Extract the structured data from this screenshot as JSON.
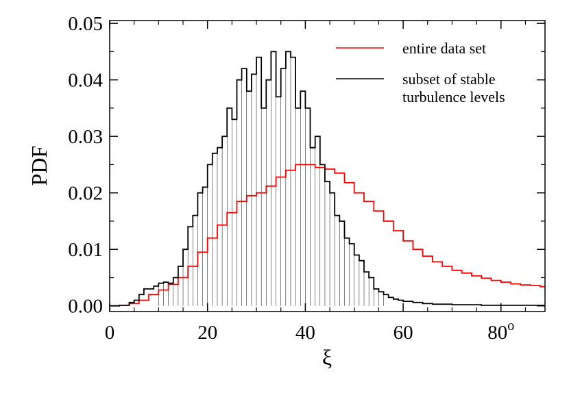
{
  "chart_data": {
    "type": "line",
    "xlabel": "ξ",
    "ylabel": "PDF",
    "xlim": [
      0,
      89
    ],
    "ylim": [
      -0.001,
      0.0505
    ],
    "xticks": [
      {
        "value": 0,
        "label": "0"
      },
      {
        "value": 20,
        "label": "20"
      },
      {
        "value": 40,
        "label": "40"
      },
      {
        "value": 60,
        "label": "60"
      },
      {
        "value": 80,
        "label": "80",
        "superscript": "o"
      }
    ],
    "yticks": [
      {
        "value": 0.0,
        "label": "0.00"
      },
      {
        "value": 0.01,
        "label": "0.01"
      },
      {
        "value": 0.02,
        "label": "0.02"
      },
      {
        "value": 0.03,
        "label": "0.03"
      },
      {
        "value": 0.04,
        "label": "0.04"
      },
      {
        "value": 0.05,
        "label": "0.05"
      }
    ],
    "grid": false,
    "legend_position": "top-right",
    "series": [
      {
        "name": "entire data set",
        "color": "#ff0000",
        "style": "step",
        "x": [
          0,
          2,
          4,
          6,
          8,
          10,
          12,
          14,
          16,
          18,
          20,
          22,
          24,
          26,
          28,
          30,
          32,
          34,
          36,
          38,
          40,
          42,
          44,
          46,
          48,
          50,
          52,
          54,
          56,
          58,
          60,
          62,
          64,
          66,
          68,
          70,
          72,
          74,
          76,
          78,
          80,
          82,
          84,
          86,
          88
        ],
        "values": [
          0.0,
          0.0001,
          0.0004,
          0.001,
          0.002,
          0.0028,
          0.0038,
          0.005,
          0.007,
          0.0095,
          0.012,
          0.0143,
          0.0165,
          0.0185,
          0.0195,
          0.02,
          0.0212,
          0.0228,
          0.024,
          0.025,
          0.025,
          0.0245,
          0.0242,
          0.0235,
          0.0218,
          0.02,
          0.0185,
          0.0168,
          0.015,
          0.0133,
          0.0115,
          0.01,
          0.0088,
          0.0078,
          0.007,
          0.0063,
          0.0058,
          0.0053,
          0.0049,
          0.0045,
          0.0042,
          0.0039,
          0.0037,
          0.0036,
          0.0034
        ]
      },
      {
        "name": "subset of stable turbulence levels",
        "color": "#000000",
        "style": "step",
        "x": [
          0,
          2,
          4,
          5,
          6,
          7,
          8,
          9,
          10,
          11,
          12,
          13,
          14,
          15,
          16,
          17,
          18,
          19,
          20,
          21,
          22,
          23,
          24,
          25,
          26,
          27,
          28,
          29,
          30,
          31,
          32,
          33,
          34,
          35,
          36,
          37,
          38,
          39,
          40,
          41,
          42,
          43,
          44,
          45,
          46,
          47,
          48,
          49,
          50,
          51,
          52,
          53,
          54,
          55,
          56,
          57,
          58,
          59,
          60,
          62,
          64,
          66,
          68,
          70,
          72,
          74,
          76,
          78,
          80,
          82,
          84,
          86,
          88
        ],
        "values": [
          0.0,
          0.0001,
          0.0006,
          0.001,
          0.002,
          0.003,
          0.003,
          0.0035,
          0.004,
          0.0042,
          0.004,
          0.005,
          0.007,
          0.01,
          0.014,
          0.016,
          0.02,
          0.021,
          0.025,
          0.027,
          0.028,
          0.03,
          0.035,
          0.033,
          0.04,
          0.042,
          0.038,
          0.041,
          0.044,
          0.035,
          0.04,
          0.045,
          0.037,
          0.042,
          0.045,
          0.044,
          0.035,
          0.038,
          0.035,
          0.028,
          0.03,
          0.025,
          0.022,
          0.02,
          0.016,
          0.015,
          0.012,
          0.011,
          0.009,
          0.008,
          0.006,
          0.005,
          0.003,
          0.0025,
          0.002,
          0.0015,
          0.0012,
          0.001,
          0.0008,
          0.0006,
          0.0004,
          0.0003,
          0.0003,
          0.0002,
          0.0002,
          0.0002,
          0.0001,
          0.0001,
          0.0001,
          0.0001,
          0.0001,
          0.0001,
          0.0001
        ]
      }
    ]
  }
}
